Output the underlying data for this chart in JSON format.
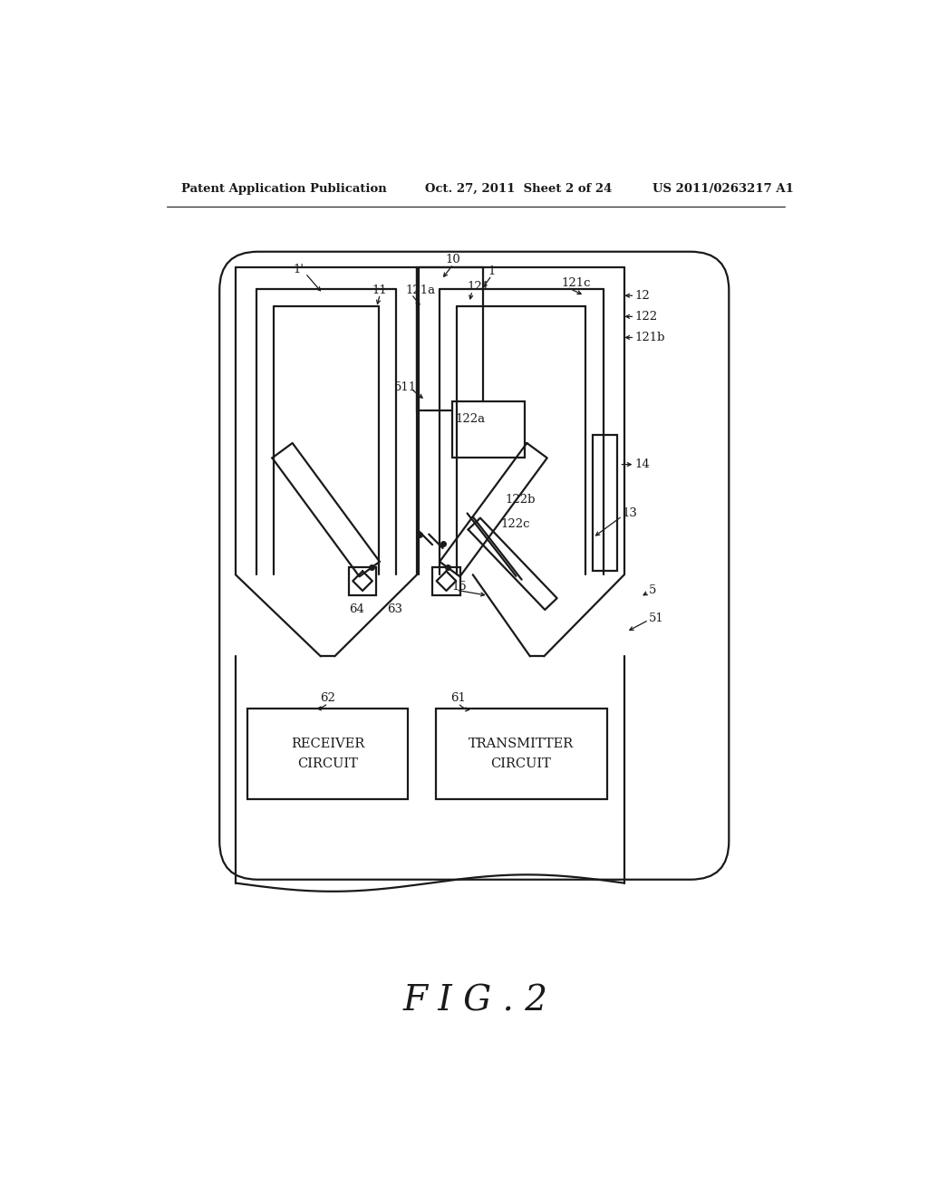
{
  "bg_color": "#ffffff",
  "lc": "#1a1a1a",
  "header_left": "Patent Application Publication",
  "header_mid": "Oct. 27, 2011  Sheet 2 of 24",
  "header_right": "US 2011/0263217 A1",
  "figure_label": "F I G . 2",
  "lw_main": 1.6,
  "lw_thin": 1.1,
  "fs_label": 9.5,
  "fs_header": 9.5,
  "fs_fig": 28
}
